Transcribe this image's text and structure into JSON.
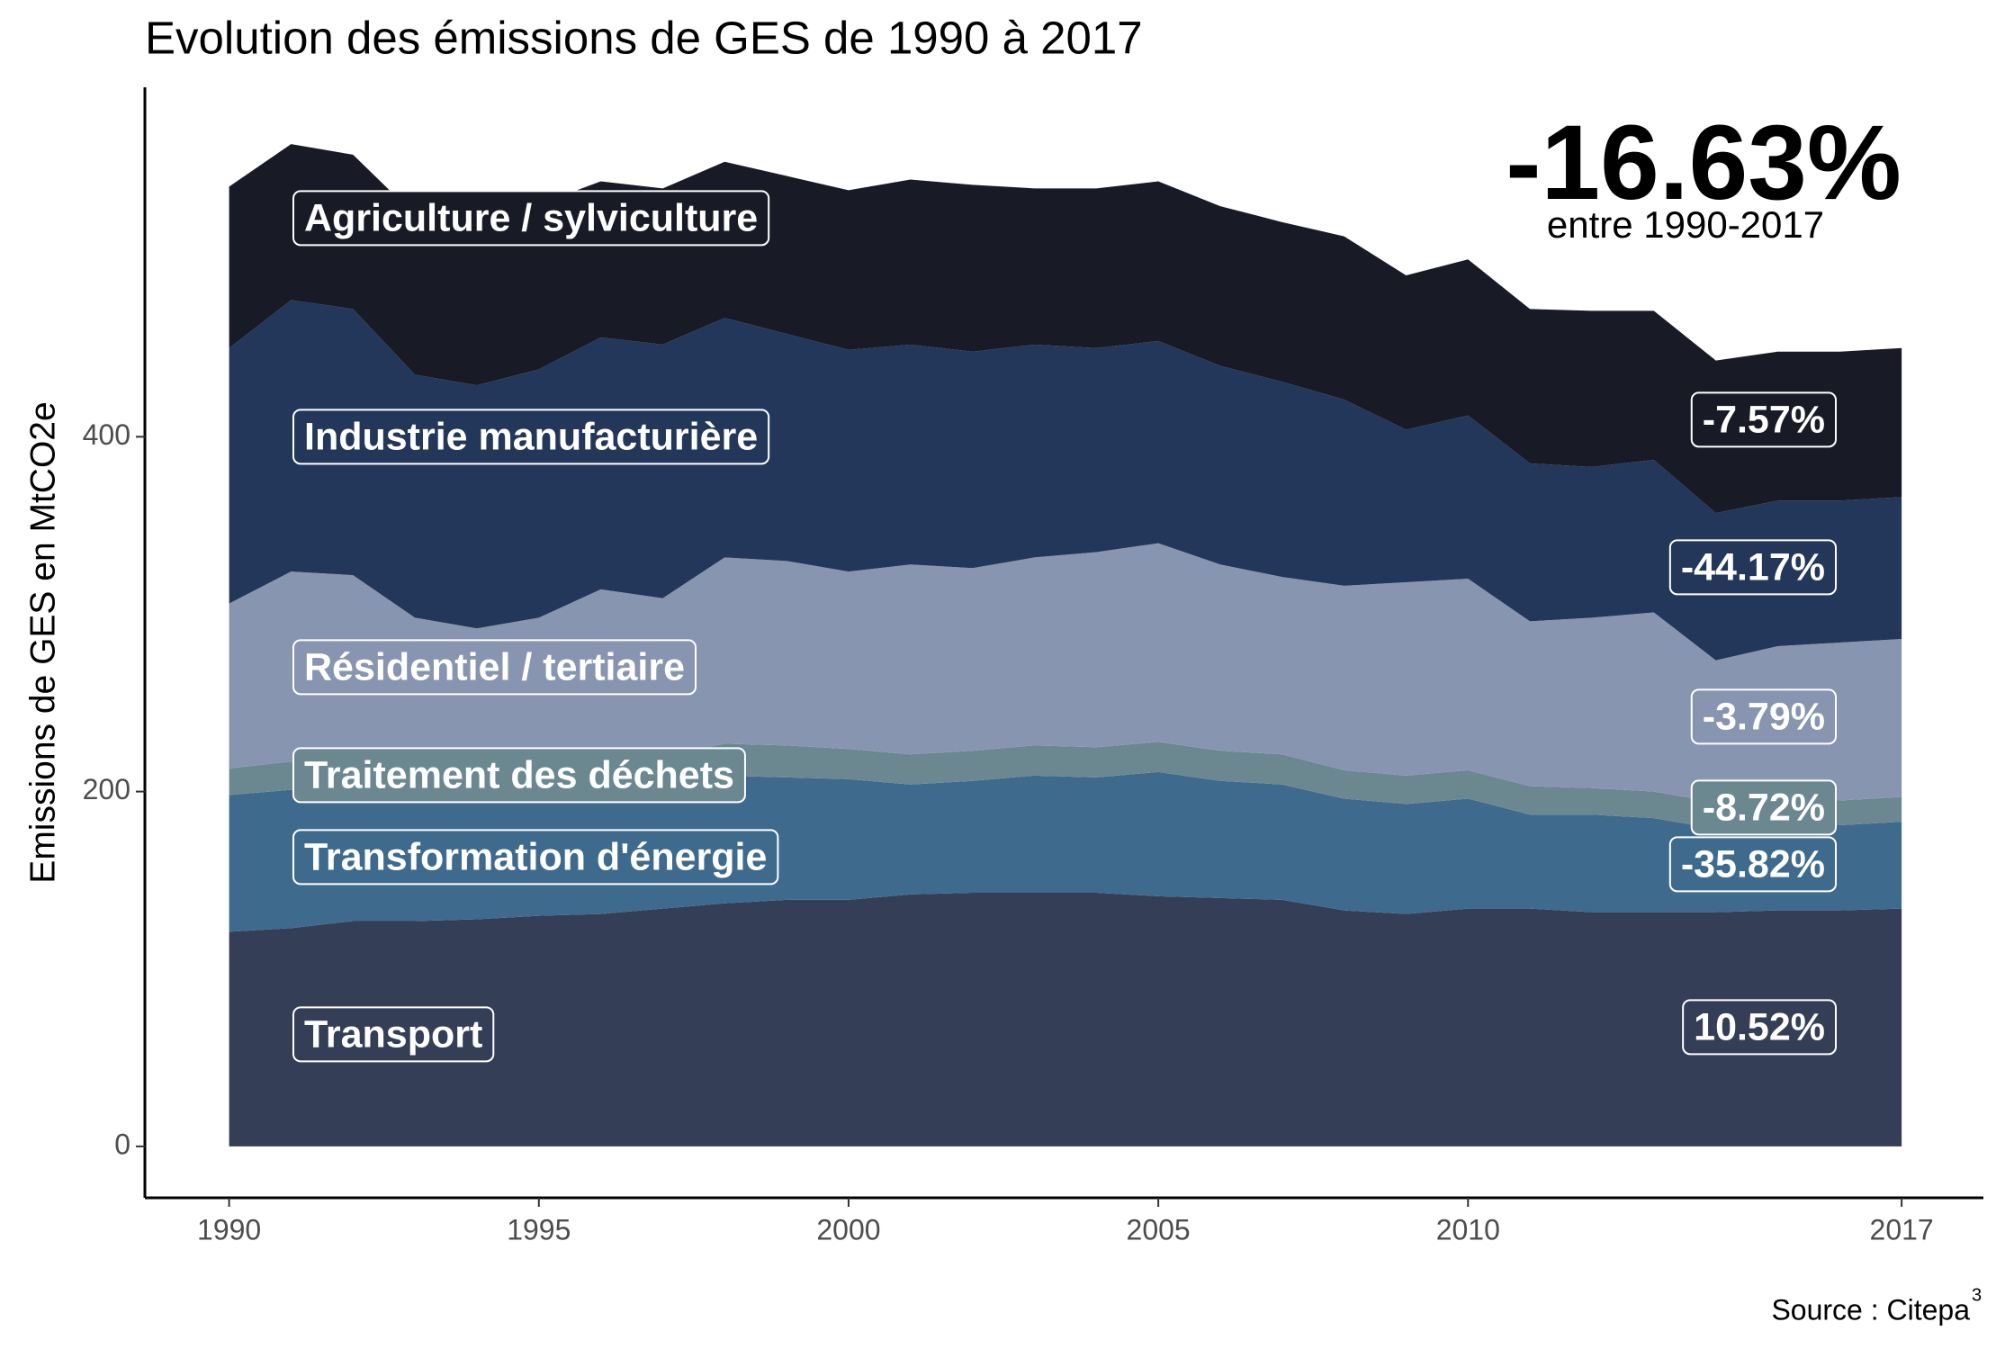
{
  "chart_data": {
    "type": "stacked_area",
    "title": "Evolution des émissions de GES de 1990 à 2017",
    "y_label": "Emissions de GES en MtCO2e",
    "headline": "-16.63%",
    "headline_sub": "entre 1990-2017",
    "caption": "Source : Citepa",
    "caption_superscript": "3",
    "x": [
      1990,
      1991,
      1992,
      1993,
      1994,
      1995,
      1996,
      1997,
      1998,
      1999,
      2000,
      2001,
      2002,
      2003,
      2004,
      2005,
      2006,
      2007,
      2008,
      2009,
      2010,
      2011,
      2012,
      2013,
      2014,
      2015,
      2016,
      2017
    ],
    "xlim": [
      1988.64,
      2018.32
    ],
    "xticks": [
      1990,
      1995,
      2000,
      2005,
      2010,
      2017
    ],
    "ylim": [
      -29,
      597
    ],
    "yticks": [
      0,
      200,
      400
    ],
    "series": [
      {
        "name": "Transport",
        "color": "#343e56",
        "change_label": "10.52%",
        "values": [
          121,
          123,
          127,
          127,
          128,
          130,
          131,
          134,
          137,
          139,
          139,
          142,
          143,
          143,
          143,
          141,
          140,
          139,
          133,
          131,
          134,
          134,
          132,
          132,
          132,
          133,
          133,
          134
        ]
      },
      {
        "name": "Transformation d'énergie",
        "color": "#3e6a8e",
        "change_label": "-35.82%",
        "values": [
          77,
          78,
          74,
          67,
          66,
          67,
          72,
          68,
          72,
          69,
          68,
          62,
          63,
          66,
          65,
          70,
          66,
          65,
          63,
          62,
          62,
          53,
          55,
          53,
          47,
          48,
          48,
          49
        ]
      },
      {
        "name": "Traitement des déchets",
        "color": "#6b8891",
        "change_label": "-8.72%",
        "values": [
          15,
          16,
          16,
          16,
          16,
          16,
          17,
          17,
          18,
          18,
          17,
          17,
          17,
          17,
          17,
          17,
          17,
          17,
          16,
          16,
          16,
          16,
          15,
          15,
          15,
          14,
          14,
          14
        ]
      },
      {
        "name": "Résidentiel / tertiaire",
        "color": "#8795b0",
        "change_label": "-3.79%",
        "values": [
          93,
          107,
          105,
          88,
          82,
          85,
          94,
          90,
          105,
          104,
          100,
          107,
          103,
          106,
          110,
          112,
          105,
          100,
          104,
          109,
          108,
          93,
          96,
          101,
          80,
          87,
          89,
          89
        ]
      },
      {
        "name": "Industrie manufacturière",
        "color": "#23375a",
        "change_label": "-44.17%",
        "values": [
          144,
          153,
          150,
          137,
          137,
          140,
          142,
          143,
          135,
          128,
          125,
          124,
          122,
          120,
          115,
          114,
          112,
          110,
          105,
          86,
          92,
          89,
          85,
          86,
          83,
          82,
          80,
          80
        ]
      },
      {
        "name": "Agriculture / sylviculture",
        "color": "#181a26",
        "change_label": "-7.57%",
        "values": [
          91,
          88,
          87,
          90,
          94,
          93,
          88,
          88,
          88,
          89,
          90,
          93,
          94,
          88,
          90,
          90,
          90,
          90,
          92,
          87,
          88,
          87,
          88,
          84,
          86,
          84,
          84,
          84
        ]
      }
    ]
  }
}
